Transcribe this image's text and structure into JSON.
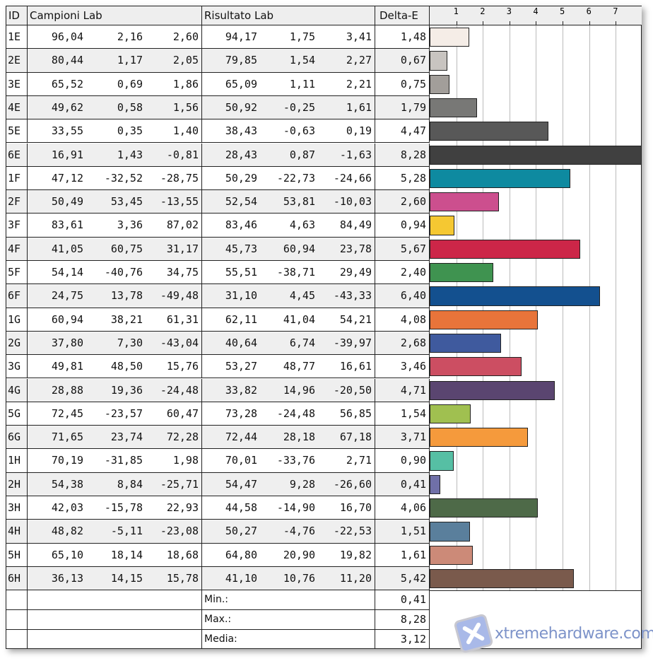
{
  "headers": {
    "id": "ID",
    "sample": "Campioni Lab",
    "result": "Risultato Lab",
    "delta": "Delta-E"
  },
  "rows": [
    {
      "id": "1E",
      "s": [
        "96,04",
        "2,16",
        "2,60"
      ],
      "r": [
        "94,17",
        "1,75",
        "3,41"
      ],
      "de": "1,48",
      "color": "#f5ede7"
    },
    {
      "id": "2E",
      "s": [
        "80,44",
        "1,17",
        "2,05"
      ],
      "r": [
        "79,85",
        "1,54",
        "2,27"
      ],
      "de": "0,67",
      "color": "#c8c4c0"
    },
    {
      "id": "3E",
      "s": [
        "65,52",
        "0,69",
        "1,86"
      ],
      "r": [
        "65,09",
        "1,11",
        "2,21"
      ],
      "de": "0,75",
      "color": "#a29e9a"
    },
    {
      "id": "4E",
      "s": [
        "49,62",
        "0,58",
        "1,56"
      ],
      "r": [
        "50,92",
        "-0,25",
        "1,61"
      ],
      "de": "1,79",
      "color": "#787876"
    },
    {
      "id": "5E",
      "s": [
        "33,55",
        "0,35",
        "1,40"
      ],
      "r": [
        "38,43",
        "-0,63",
        "0,19"
      ],
      "de": "4,47",
      "color": "#585858"
    },
    {
      "id": "6E",
      "s": [
        "16,91",
        "1,43",
        "-0,81"
      ],
      "r": [
        "28,43",
        "0,87",
        "-1,63"
      ],
      "de": "8,28",
      "color": "#404040"
    },
    {
      "id": "1F",
      "s": [
        "47,12",
        "-32,52",
        "-28,75"
      ],
      "r": [
        "50,29",
        "-22,73",
        "-24,66"
      ],
      "de": "5,28",
      "color": "#0e8aa0"
    },
    {
      "id": "2F",
      "s": [
        "50,49",
        "53,45",
        "-13,55"
      ],
      "r": [
        "52,54",
        "53,81",
        "-10,03"
      ],
      "de": "2,60",
      "color": "#cc4f8e"
    },
    {
      "id": "3F",
      "s": [
        "83,61",
        "3,36",
        "87,02"
      ],
      "r": [
        "83,46",
        "4,63",
        "84,49"
      ],
      "de": "0,94",
      "color": "#f5c832"
    },
    {
      "id": "4F",
      "s": [
        "41,05",
        "60,75",
        "31,17"
      ],
      "r": [
        "45,73",
        "60,94",
        "23,78"
      ],
      "de": "5,67",
      "color": "#cc2648"
    },
    {
      "id": "5F",
      "s": [
        "54,14",
        "-40,76",
        "34,75"
      ],
      "r": [
        "55,51",
        "-38,71",
        "29,49"
      ],
      "de": "2,40",
      "color": "#3f9350"
    },
    {
      "id": "6F",
      "s": [
        "24,75",
        "13,78",
        "-49,48"
      ],
      "r": [
        "31,10",
        "4,45",
        "-43,33"
      ],
      "de": "6,40",
      "color": "#13508f"
    },
    {
      "id": "1G",
      "s": [
        "60,94",
        "38,21",
        "61,31"
      ],
      "r": [
        "62,11",
        "41,04",
        "54,21"
      ],
      "de": "4,08",
      "color": "#e8743a"
    },
    {
      "id": "2G",
      "s": [
        "37,80",
        "7,30",
        "-43,04"
      ],
      "r": [
        "40,64",
        "6,74",
        "-39,97"
      ],
      "de": "2,68",
      "color": "#3f5a9e"
    },
    {
      "id": "3G",
      "s": [
        "49,81",
        "48,50",
        "15,76"
      ],
      "r": [
        "53,27",
        "48,77",
        "16,61"
      ],
      "de": "3,46",
      "color": "#cc4e62"
    },
    {
      "id": "4G",
      "s": [
        "28,88",
        "19,36",
        "-24,48"
      ],
      "r": [
        "33,82",
        "14,96",
        "-20,50"
      ],
      "de": "4,71",
      "color": "#5a4570"
    },
    {
      "id": "5G",
      "s": [
        "72,45",
        "-23,57",
        "60,47"
      ],
      "r": [
        "73,28",
        "-24,48",
        "56,85"
      ],
      "de": "1,54",
      "color": "#a0c050"
    },
    {
      "id": "6G",
      "s": [
        "71,65",
        "23,74",
        "72,28"
      ],
      "r": [
        "72,44",
        "28,18",
        "67,18"
      ],
      "de": "3,71",
      "color": "#f59a3c"
    },
    {
      "id": "1H",
      "s": [
        "70,19",
        "-31,85",
        "1,98"
      ],
      "r": [
        "70,01",
        "-33,76",
        "2,71"
      ],
      "de": "0,90",
      "color": "#56bfa4"
    },
    {
      "id": "2H",
      "s": [
        "54,38",
        "8,84",
        "-25,71"
      ],
      "r": [
        "54,47",
        "9,28",
        "-26,60"
      ],
      "de": "0,41",
      "color": "#7070a8"
    },
    {
      "id": "3H",
      "s": [
        "42,03",
        "-15,78",
        "22,93"
      ],
      "r": [
        "44,58",
        "-14,90",
        "16,70"
      ],
      "de": "4,06",
      "color": "#4e6a48"
    },
    {
      "id": "4H",
      "s": [
        "48,82",
        "-5,11",
        "-23,08"
      ],
      "r": [
        "50,27",
        "-4,76",
        "-22,53"
      ],
      "de": "1,51",
      "color": "#5a7f9c"
    },
    {
      "id": "5H",
      "s": [
        "65,10",
        "18,14",
        "18,68"
      ],
      "r": [
        "64,80",
        "20,90",
        "19,82"
      ],
      "de": "1,61",
      "color": "#cc8a78"
    },
    {
      "id": "6H",
      "s": [
        "36,13",
        "14,15",
        "15,78"
      ],
      "r": [
        "41,10",
        "10,76",
        "11,20"
      ],
      "de": "5,42",
      "color": "#7a5a4c"
    }
  ],
  "summary": [
    {
      "label": "Min.:",
      "value": "0,41"
    },
    {
      "label": "Max.:",
      "value": "8,28"
    },
    {
      "label": "Media:",
      "value": "3,12"
    }
  ],
  "chart_data": {
    "type": "bar",
    "orientation": "horizontal",
    "categories": [
      "1E",
      "2E",
      "3E",
      "4E",
      "5E",
      "6E",
      "1F",
      "2F",
      "3F",
      "4F",
      "5F",
      "6F",
      "1G",
      "2G",
      "3G",
      "4G",
      "5G",
      "6G",
      "1H",
      "2H",
      "3H",
      "4H",
      "5H",
      "6H"
    ],
    "values": [
      1.48,
      0.67,
      0.75,
      1.79,
      4.47,
      8.28,
      5.28,
      2.6,
      0.94,
      5.67,
      2.4,
      6.4,
      4.08,
      2.68,
      3.46,
      4.71,
      1.54,
      3.71,
      0.9,
      0.41,
      4.06,
      1.51,
      1.61,
      5.42
    ],
    "xlim": [
      0,
      8
    ],
    "ticks": [
      "1",
      "2",
      "3",
      "4",
      "5",
      "6",
      "7"
    ],
    "grid": true
  },
  "watermark": "xtremehardware.com"
}
